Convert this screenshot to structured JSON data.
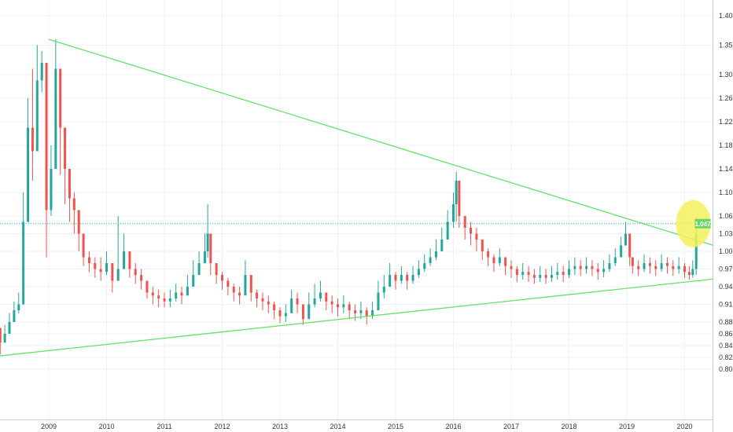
{
  "chart_data": {
    "type": "candlestick",
    "title": "",
    "xlabel": "",
    "ylabel": "",
    "x_ticks": [
      "2009",
      "2010",
      "2011",
      "2012",
      "2013",
      "2014",
      "2015",
      "2016",
      "2017",
      "2018",
      "2019",
      "2020"
    ],
    "y_ticks": [
      "0.80",
      "0.82",
      "0.84",
      "0.86",
      "0.88",
      "0.91",
      "0.94",
      "0.97",
      "1.00",
      "1.03",
      "1.06",
      "1.10",
      "1.14",
      "1.18",
      "1.22",
      "1.26",
      "1.30",
      "1.35",
      "1.40"
    ],
    "xlim": [
      2008.0,
      2020.5
    ],
    "ylim": [
      0.79,
      1.42
    ],
    "grid": true,
    "up_color": "#26a69a",
    "down_color": "#ef5350",
    "trendline_color": "#66e066",
    "price_line_color": "#26a69a",
    "price_line_value": 1.047,
    "price_label": "1.047",
    "highlight_color": "#f5f05a",
    "series": [
      {
        "x": [
          2008.0,
          2008.08,
          2008.16,
          2008.24,
          2008.32,
          2008.4,
          2008.48,
          2008.56,
          2008.64,
          2008.72,
          2008.8,
          2008.88,
          2008.96,
          2009.04,
          2009.12,
          2009.2,
          2009.28,
          2009.36,
          2009.44,
          2009.52,
          2009.6,
          2009.7,
          2009.8,
          2009.9,
          2010.0,
          2010.1,
          2010.2,
          2010.3,
          2010.4,
          2010.5,
          2010.6,
          2010.7,
          2010.8,
          2010.9,
          2011.0,
          2011.1,
          2011.2,
          2011.3,
          2011.4,
          2011.5,
          2011.6,
          2011.7,
          2011.75,
          2011.8,
          2011.9,
          2012.0,
          2012.1,
          2012.2,
          2012.3,
          2012.4,
          2012.5,
          2012.6,
          2012.7,
          2012.8,
          2012.9,
          2013.0,
          2013.1,
          2013.2,
          2013.3,
          2013.4,
          2013.5,
          2013.6,
          2013.7,
          2013.8,
          2013.9,
          2014.0,
          2014.1,
          2014.2,
          2014.3,
          2014.4,
          2014.5,
          2014.6,
          2014.7,
          2014.8,
          2014.9,
          2015.0,
          2015.1,
          2015.2,
          2015.3,
          2015.4,
          2015.5,
          2015.6,
          2015.7,
          2015.8,
          2015.9,
          2016.0,
          2016.05,
          2016.1,
          2016.2,
          2016.3,
          2016.4,
          2016.5,
          2016.6,
          2016.7,
          2016.8,
          2016.9,
          2017.0,
          2017.1,
          2017.2,
          2017.3,
          2017.4,
          2017.5,
          2017.6,
          2017.7,
          2017.8,
          2017.9,
          2018.0,
          2018.1,
          2018.2,
          2018.3,
          2018.4,
          2018.5,
          2018.6,
          2018.7,
          2018.8,
          2018.9,
          2018.98,
          2019.05,
          2019.1,
          2019.2,
          2019.3,
          2019.4,
          2019.5,
          2019.6,
          2019.7,
          2019.8,
          2019.9,
          2020.0,
          2020.08,
          2020.14,
          2020.2
        ],
        "close": [
          0.89,
          0.87,
          0.845,
          0.86,
          0.88,
          0.9,
          0.91,
          1.05,
          1.21,
          1.17,
          1.29,
          1.32,
          1.07,
          1.14,
          1.31,
          1.21,
          1.14,
          1.09,
          1.07,
          1.03,
          0.99,
          0.98,
          0.97,
          0.965,
          0.98,
          0.95,
          0.97,
          1.0,
          0.97,
          0.96,
          0.95,
          0.93,
          0.925,
          0.92,
          0.915,
          0.92,
          0.93,
          0.925,
          0.94,
          0.96,
          0.98,
          1.0,
          1.03,
          0.98,
          0.96,
          0.95,
          0.94,
          0.93,
          0.925,
          0.96,
          0.93,
          0.92,
          0.915,
          0.91,
          0.9,
          0.89,
          0.895,
          0.92,
          0.91,
          0.885,
          0.91,
          0.92,
          0.93,
          0.915,
          0.91,
          0.905,
          0.91,
          0.9,
          0.895,
          0.9,
          0.89,
          0.9,
          0.93,
          0.94,
          0.96,
          0.95,
          0.96,
          0.95,
          0.96,
          0.97,
          0.98,
          0.99,
          1.0,
          1.02,
          1.05,
          1.08,
          1.12,
          1.06,
          1.04,
          1.03,
          1.02,
          1.0,
          0.99,
          0.98,
          0.99,
          0.975,
          0.97,
          0.96,
          0.965,
          0.96,
          0.955,
          0.96,
          0.955,
          0.96,
          0.965,
          0.96,
          0.97,
          0.975,
          0.97,
          0.975,
          0.97,
          0.965,
          0.97,
          0.98,
          0.99,
          1.01,
          1.03,
          0.99,
          0.975,
          0.97,
          0.98,
          0.975,
          0.97,
          0.98,
          0.975,
          0.97,
          0.975,
          0.965,
          0.96,
          0.97,
          1.03
        ],
        "high": [
          0.91,
          0.885,
          0.86,
          0.875,
          0.895,
          0.915,
          0.93,
          1.1,
          1.26,
          1.31,
          1.35,
          1.34,
          1.32,
          1.18,
          1.36,
          1.3,
          1.19,
          1.12,
          1.1,
          1.06,
          1.02,
          1.0,
          0.99,
          0.99,
          1.0,
          0.98,
          1.06,
          1.03,
          0.99,
          0.98,
          0.97,
          0.95,
          0.94,
          0.935,
          0.93,
          0.935,
          0.945,
          0.94,
          0.96,
          0.985,
          1.0,
          1.03,
          1.08,
          1.02,
          0.98,
          0.965,
          0.955,
          0.945,
          0.94,
          0.985,
          0.95,
          0.935,
          0.93,
          0.925,
          0.915,
          0.905,
          0.91,
          0.935,
          0.93,
          0.9,
          0.93,
          0.945,
          0.95,
          0.93,
          0.925,
          0.92,
          0.925,
          0.915,
          0.91,
          0.915,
          0.905,
          0.915,
          0.95,
          0.96,
          0.98,
          0.965,
          0.975,
          0.965,
          0.975,
          0.985,
          0.995,
          1.005,
          1.02,
          1.04,
          1.07,
          1.1,
          1.135,
          1.09,
          1.06,
          1.05,
          1.04,
          1.02,
          1.005,
          0.995,
          1.005,
          0.99,
          0.985,
          0.975,
          0.98,
          0.975,
          0.97,
          0.975,
          0.97,
          0.975,
          0.98,
          0.975,
          0.985,
          0.99,
          0.985,
          0.99,
          0.985,
          0.98,
          0.985,
          0.995,
          1.005,
          1.025,
          1.05,
          1.015,
          0.99,
          0.985,
          0.995,
          0.99,
          0.985,
          0.995,
          0.99,
          0.985,
          0.99,
          0.98,
          0.975,
          0.985,
          1.05
        ],
        "low": [
          0.87,
          0.84,
          0.825,
          0.845,
          0.865,
          0.885,
          0.895,
          1.0,
          1.14,
          1.12,
          1.25,
          1.27,
          0.99,
          1.06,
          1.22,
          1.13,
          1.08,
          1.05,
          1.03,
          1.0,
          0.975,
          0.965,
          0.955,
          0.95,
          0.96,
          0.93,
          0.95,
          0.97,
          0.955,
          0.945,
          0.935,
          0.92,
          0.91,
          0.905,
          0.905,
          0.905,
          0.915,
          0.91,
          0.925,
          0.945,
          0.96,
          0.98,
          0.99,
          0.96,
          0.945,
          0.935,
          0.925,
          0.915,
          0.91,
          0.93,
          0.915,
          0.905,
          0.9,
          0.895,
          0.885,
          0.878,
          0.88,
          0.9,
          0.895,
          0.875,
          0.89,
          0.905,
          0.915,
          0.9,
          0.895,
          0.89,
          0.895,
          0.885,
          0.882,
          0.885,
          0.876,
          0.885,
          0.905,
          0.92,
          0.94,
          0.935,
          0.945,
          0.935,
          0.945,
          0.955,
          0.965,
          0.975,
          0.985,
          1.0,
          1.02,
          1.04,
          1.05,
          1.04,
          1.02,
          1.01,
          1.0,
          0.985,
          0.975,
          0.965,
          0.975,
          0.96,
          0.955,
          0.948,
          0.952,
          0.948,
          0.945,
          0.948,
          0.945,
          0.948,
          0.952,
          0.948,
          0.955,
          0.96,
          0.958,
          0.962,
          0.958,
          0.952,
          0.956,
          0.965,
          0.975,
          0.99,
          1.01,
          0.975,
          0.962,
          0.958,
          0.965,
          0.962,
          0.958,
          0.965,
          0.962,
          0.958,
          0.962,
          0.955,
          0.952,
          0.955,
          0.96
        ]
      }
    ],
    "trendlines": [
      {
        "x": [
          2009.0,
          2020.5
        ],
        "y": [
          1.36,
          1.01
        ]
      },
      {
        "x": [
          2008.1,
          2020.5
        ],
        "y": [
          0.822,
          0.953
        ]
      }
    ]
  }
}
